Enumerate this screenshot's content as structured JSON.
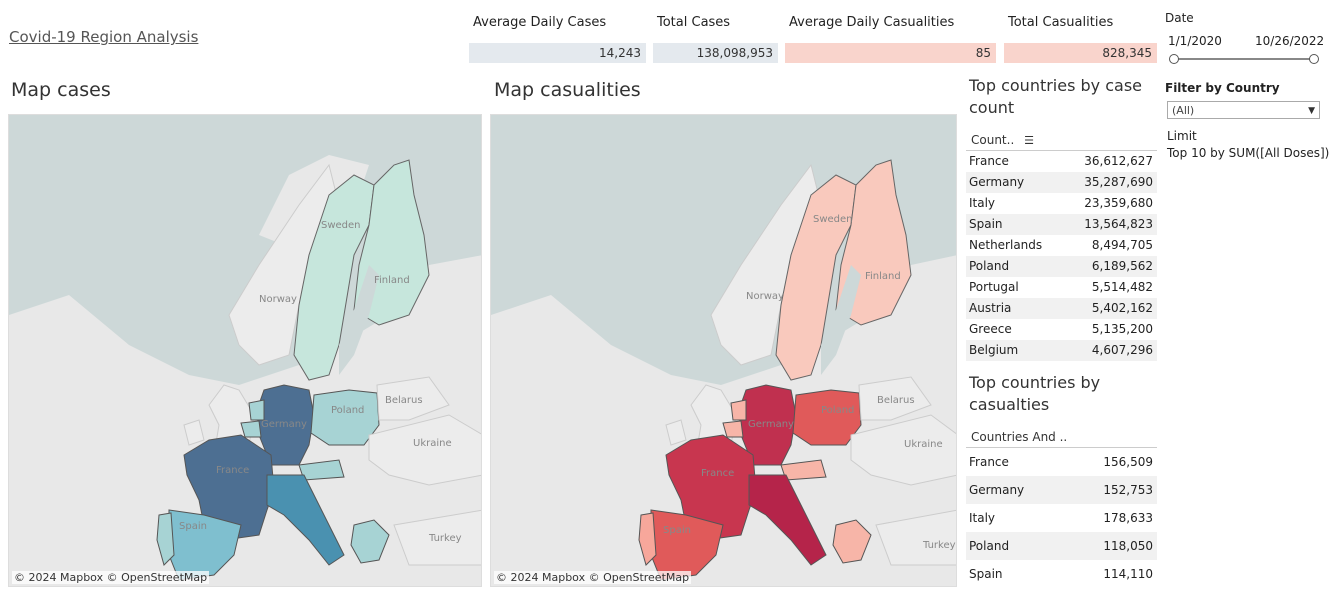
{
  "page_title": "Covid-19 Region Analysis",
  "kpis": [
    {
      "label": "Average Daily Cases",
      "value": "14,243"
    },
    {
      "label": "Total Cases",
      "value": "138,098,953"
    },
    {
      "label": "Average Daily Casualities",
      "value": "85"
    },
    {
      "label": "Total Casualities",
      "value": "828,345"
    }
  ],
  "date_filter": {
    "label": "Date",
    "start": "1/1/2020",
    "end": "10/26/2022"
  },
  "country_filter": {
    "label": "Filter by Country",
    "selected": "(All)"
  },
  "limit": {
    "label": "Limit",
    "value": "Top 10 by SUM([All Doses])"
  },
  "map_cases": {
    "title": "Map cases",
    "attribution": "© 2024 Mapbox © OpenStreetMap",
    "labels": {
      "sweden": "Sweden",
      "finland": "Finland",
      "norway": "Norway",
      "germany": "Germany",
      "poland": "Poland",
      "belarus": "Belarus",
      "ukraine": "Ukraine",
      "france": "France",
      "spain": "Spain",
      "turkey": "Turkey"
    }
  },
  "map_casualties": {
    "title": "Map casualities",
    "attribution": "© 2024 Mapbox © OpenStreetMap",
    "labels": {
      "sweden": "Sweden",
      "finland": "Finland",
      "norway": "Norway",
      "germany": "Germany",
      "poland": "Poland",
      "belarus": "Belarus",
      "ukraine": "Ukraine",
      "france": "France",
      "spain": "Spain",
      "turkey": "Turkey"
    }
  },
  "top_cases": {
    "title": "Top countries by case count",
    "column_header": "Count..",
    "rows": [
      {
        "country": "France",
        "value": "36,612,627"
      },
      {
        "country": "Germany",
        "value": "35,287,690"
      },
      {
        "country": "Italy",
        "value": "23,359,680"
      },
      {
        "country": "Spain",
        "value": "13,564,823"
      },
      {
        "country": "Netherlands",
        "value": "8,494,705"
      },
      {
        "country": "Poland",
        "value": "6,189,562"
      },
      {
        "country": "Portugal",
        "value": "5,514,482"
      },
      {
        "country": "Austria",
        "value": "5,402,162"
      },
      {
        "country": "Greece",
        "value": "5,135,200"
      },
      {
        "country": "Belgium",
        "value": "4,607,296"
      }
    ]
  },
  "top_casualties": {
    "title": "Top countries by casualties",
    "column_header": "Countries And ..",
    "rows": [
      {
        "country": "France",
        "value": "156,509"
      },
      {
        "country": "Germany",
        "value": "152,753"
      },
      {
        "country": "Italy",
        "value": "178,633"
      },
      {
        "country": "Poland",
        "value": "118,050"
      },
      {
        "country": "Spain",
        "value": "114,110"
      }
    ]
  },
  "colors": {
    "cases_high": "#4d6f92",
    "cases_mid": "#4a91b0",
    "cases_low": "#a7d3d4",
    "cases_lowest": "#c6e6dc",
    "casualties_high": "#c0304f",
    "casualties_mid": "#e05a5a",
    "casualties_low": "#f7b5a8",
    "casualties_lowest": "#f9c9bd"
  }
}
